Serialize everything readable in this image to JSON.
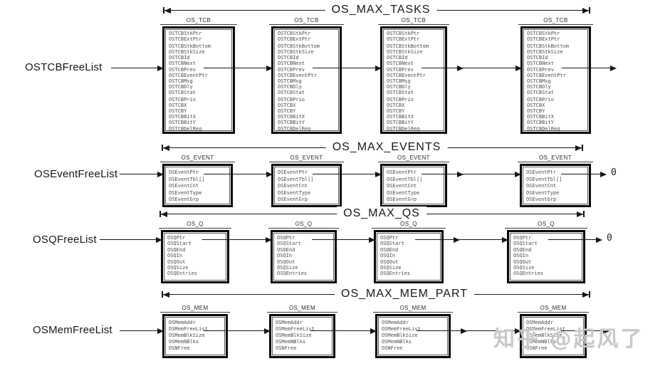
{
  "lists": [
    {
      "name": "OSTCBFreeList",
      "max_label": "OS_MAX_TASKS",
      "struct_name": "OS_TCB",
      "fields": [
        "OSTCBStkPtr",
        "OSTCBExtPtr",
        "OSTCBStkBottom",
        "OSTCBStkSize",
        "OSTCBId",
        "OSTCBNext",
        "OSTCBPrev",
        "OSTCBEventPtr",
        "OSTCBMsg",
        "OSTCBDly",
        "OSTCBStat",
        "OSTCBPrio",
        "OSTCBX",
        "OSTCBY",
        "OSTCBBitX",
        "OSTCBBitY",
        "OSTCBDelReq"
      ],
      "link_field": "OSTCBNext"
    },
    {
      "name": "OSEventFreeList",
      "max_label": "OS_MAX_EVENTS",
      "struct_name": "OS_EVENT",
      "fields": [
        "OSEventPtr",
        "OSEventTbl[]",
        "OSEventCnt",
        "OSEventType",
        "OSEventGrp"
      ],
      "link_field": "OSEventPtr",
      "null_label": "0"
    },
    {
      "name": "OSQFreeList",
      "max_label": "OS_MAX_QS",
      "struct_name": "OS_Q",
      "fields": [
        "OSQPtr",
        "OSQStart",
        "OSQEnd",
        "OSQIn",
        "OSQOut",
        "OSQSize",
        "OSQEntries"
      ],
      "link_field": "OSQPtr",
      "null_label": "0"
    },
    {
      "name": "OSMemFreeList",
      "max_label": "OS_MAX_MEM_PART",
      "struct_name": "OS_MEM",
      "fields": [
        "OSMemAddr",
        "OSMemFreeList",
        "OSMemBlkSize",
        "OSMemNBlks",
        "OSNFree"
      ],
      "link_field": "OSMemFreeList"
    }
  ],
  "watermark": {
    "text": "知乎 @起风了"
  }
}
